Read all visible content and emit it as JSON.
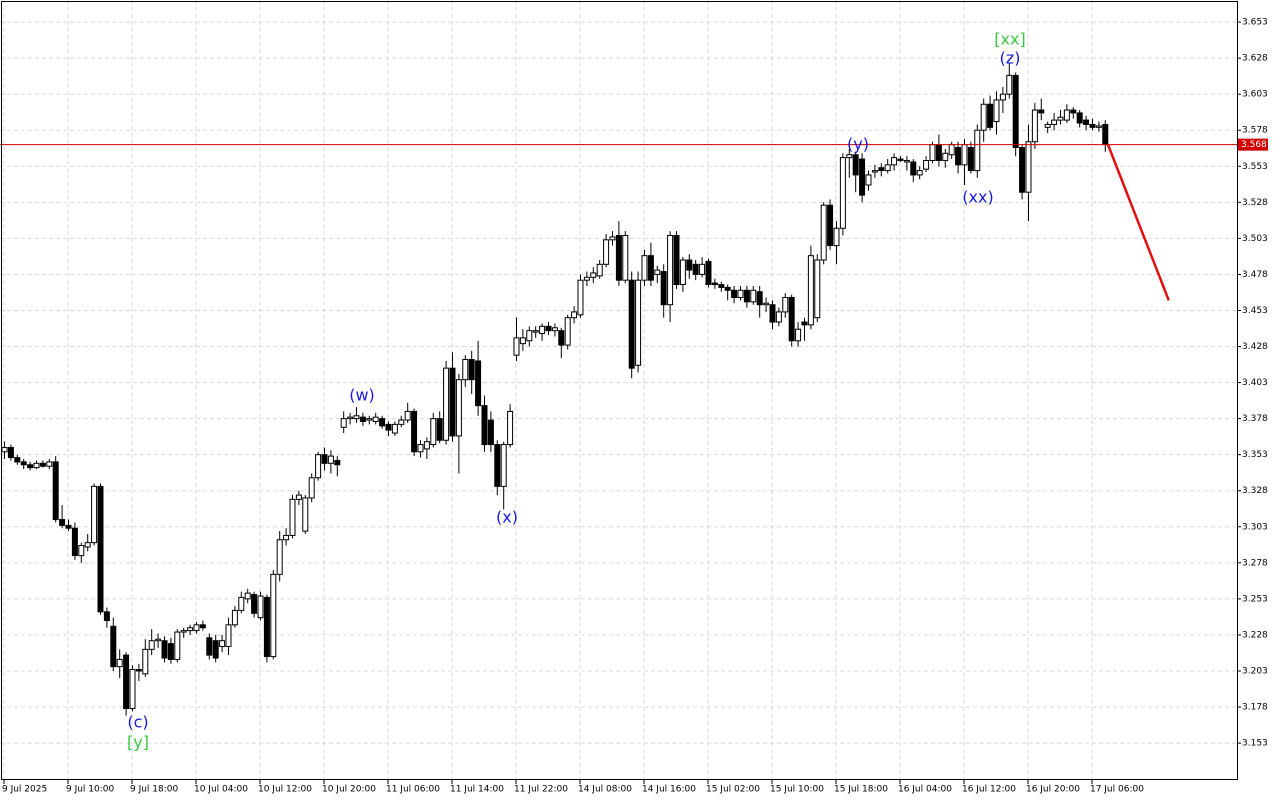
{
  "chart_data": {
    "type": "candlestick",
    "xlim": [
      -0.625,
      192.66
    ],
    "ylim": [
      3.1274,
      3.6683
    ],
    "yticks": [
      3.153,
      3.178,
      3.203,
      3.228,
      3.253,
      3.278,
      3.303,
      3.328,
      3.353,
      3.378,
      3.403,
      3.428,
      3.453,
      3.478,
      3.503,
      3.528,
      3.553,
      3.578,
      3.603,
      3.628,
      3.653
    ],
    "xticks": [
      {
        "value": 0,
        "label": "9 Jul 2025"
      },
      {
        "value": 10,
        "label": "9 Jul 10:00"
      },
      {
        "value": 20,
        "label": "9 Jul 18:00"
      },
      {
        "value": 30,
        "label": "10 Jul 04:00"
      },
      {
        "value": 40,
        "label": "10 Jul 12:00"
      },
      {
        "value": 50,
        "label": "10 Jul 20:00"
      },
      {
        "value": 60,
        "label": "11 Jul 06:00"
      },
      {
        "value": 70,
        "label": "11 Jul 14:00"
      },
      {
        "value": 80,
        "label": "11 Jul 22:00"
      },
      {
        "value": 90,
        "label": "14 Jul 08:00"
      },
      {
        "value": 100,
        "label": "14 Jul 16:00"
      },
      {
        "value": 110,
        "label": "15 Jul 02:00"
      },
      {
        "value": 120,
        "label": "15 Jul 10:00"
      },
      {
        "value": 130,
        "label": "15 Jul 18:00"
      },
      {
        "value": 140,
        "label": "16 Jul 04:00"
      },
      {
        "value": 150,
        "label": "16 Jul 12:00"
      },
      {
        "value": 160,
        "label": "16 Jul 20:00"
      },
      {
        "value": 170,
        "label": "17 Jul 06:00"
      }
    ],
    "grid": true,
    "up_color": "#ffffff",
    "down_color": "#000000",
    "candles": [
      [
        3.355,
        3.362,
        3.35,
        3.358
      ],
      [
        3.358,
        3.36,
        3.349,
        3.351
      ],
      [
        3.351,
        3.353,
        3.346,
        3.348
      ],
      [
        3.348,
        3.35,
        3.343,
        3.346
      ],
      [
        3.346,
        3.348,
        3.342,
        3.344
      ],
      [
        3.344,
        3.349,
        3.343,
        3.347
      ],
      [
        3.347,
        3.349,
        3.344,
        3.345
      ],
      [
        3.345,
        3.35,
        3.343,
        3.348
      ],
      [
        3.348,
        3.352,
        3.306,
        3.308
      ],
      [
        3.308,
        3.318,
        3.302,
        3.304
      ],
      [
        3.304,
        3.308,
        3.3,
        3.302
      ],
      [
        3.302,
        3.306,
        3.28,
        3.283
      ],
      [
        3.283,
        3.292,
        3.278,
        3.29
      ],
      [
        3.289,
        3.298,
        3.286,
        3.292
      ],
      [
        3.292,
        3.333,
        3.29,
        3.331
      ],
      [
        3.331,
        3.333,
        3.242,
        3.244
      ],
      [
        3.244,
        3.247,
        3.233,
        3.238
      ],
      [
        3.234,
        3.24,
        3.203,
        3.206
      ],
      [
        3.206,
        3.218,
        3.198,
        3.211
      ],
      [
        3.214,
        3.216,
        3.172,
        3.177
      ],
      [
        3.177,
        3.207,
        3.175,
        3.204
      ],
      [
        3.204,
        3.208,
        3.196,
        3.203
      ],
      [
        3.201,
        3.225,
        3.199,
        3.218
      ],
      [
        3.218,
        3.232,
        3.214,
        3.224
      ],
      [
        3.224,
        3.229,
        3.219,
        3.225
      ],
      [
        3.224,
        3.227,
        3.209,
        3.212
      ],
      [
        3.222,
        3.226,
        3.208,
        3.211
      ],
      [
        3.211,
        3.232,
        3.209,
        3.23
      ],
      [
        3.23,
        3.233,
        3.226,
        3.231
      ],
      [
        3.231,
        3.235,
        3.228,
        3.233
      ],
      [
        3.231,
        3.237,
        3.229,
        3.235
      ],
      [
        3.235,
        3.238,
        3.231,
        3.233
      ],
      [
        3.226,
        3.229,
        3.211,
        3.214
      ],
      [
        3.224,
        3.228,
        3.209,
        3.212
      ],
      [
        3.22,
        3.228,
        3.216,
        3.224
      ],
      [
        3.22,
        3.24,
        3.214,
        3.235
      ],
      [
        3.235,
        3.248,
        3.233,
        3.245
      ],
      [
        3.245,
        3.258,
        3.243,
        3.254
      ],
      [
        3.253,
        3.26,
        3.25,
        3.257
      ],
      [
        3.256,
        3.258,
        3.24,
        3.243
      ],
      [
        3.24,
        3.258,
        3.238,
        3.255
      ],
      [
        3.254,
        3.256,
        3.209,
        3.213
      ],
      [
        3.213,
        3.273,
        3.211,
        3.27
      ],
      [
        3.27,
        3.3,
        3.265,
        3.294
      ],
      [
        3.294,
        3.302,
        3.29,
        3.297
      ],
      [
        3.297,
        3.325,
        3.295,
        3.322
      ],
      [
        3.322,
        3.328,
        3.318,
        3.325
      ],
      [
        3.3,
        3.325,
        3.298,
        3.323
      ],
      [
        3.323,
        3.34,
        3.32,
        3.337
      ],
      [
        3.337,
        3.355,
        3.335,
        3.353
      ],
      [
        3.353,
        3.358,
        3.342,
        3.347
      ],
      [
        3.347,
        3.356,
        3.34,
        3.352
      ],
      [
        3.349,
        3.352,
        3.338,
        3.346
      ],
      [
        3.372,
        3.383,
        3.368,
        3.378
      ],
      [
        3.378,
        3.382,
        3.374,
        3.379
      ],
      [
        3.378,
        3.386,
        3.375,
        3.38
      ],
      [
        3.379,
        3.382,
        3.373,
        3.376
      ],
      [
        3.377,
        3.38,
        3.374,
        3.378
      ],
      [
        3.376,
        3.382,
        3.374,
        3.379
      ],
      [
        3.378,
        3.38,
        3.371,
        3.373
      ],
      [
        3.374,
        3.376,
        3.366,
        3.37
      ],
      [
        3.368,
        3.376,
        3.366,
        3.374
      ],
      [
        3.374,
        3.38,
        3.372,
        3.377
      ],
      [
        3.377,
        3.389,
        3.375,
        3.383
      ],
      [
        3.383,
        3.385,
        3.352,
        3.355
      ],
      [
        3.355,
        3.363,
        3.351,
        3.36
      ],
      [
        3.357,
        3.365,
        3.35,
        3.362
      ],
      [
        3.36,
        3.382,
        3.358,
        3.378
      ],
      [
        3.378,
        3.383,
        3.361,
        3.363
      ],
      [
        3.363,
        3.418,
        3.36,
        3.413
      ],
      [
        3.413,
        3.424,
        3.362,
        3.366
      ],
      [
        3.366,
        3.409,
        3.34,
        3.405
      ],
      [
        3.405,
        3.422,
        3.4,
        3.419
      ],
      [
        3.419,
        3.425,
        3.395,
        3.405
      ],
      [
        3.418,
        3.432,
        3.38,
        3.387
      ],
      [
        3.387,
        3.394,
        3.355,
        3.36
      ],
      [
        3.377,
        3.383,
        3.355,
        3.36
      ],
      [
        3.36,
        3.363,
        3.325,
        3.331
      ],
      [
        3.331,
        3.362,
        3.315,
        3.36
      ],
      [
        3.36,
        3.388,
        3.358,
        3.383
      ],
      [
        3.422,
        3.448,
        3.418,
        3.434
      ],
      [
        3.43,
        3.44,
        3.425,
        3.434
      ],
      [
        3.432,
        3.442,
        3.428,
        3.439
      ],
      [
        3.438,
        3.442,
        3.434,
        3.439
      ],
      [
        3.437,
        3.444,
        3.432,
        3.442
      ],
      [
        3.442,
        3.445,
        3.436,
        3.439
      ],
      [
        3.439,
        3.444,
        3.435,
        3.441
      ],
      [
        3.439,
        3.441,
        3.42,
        3.429
      ],
      [
        3.429,
        3.45,
        3.426,
        3.448
      ],
      [
        3.448,
        3.456,
        3.444,
        3.452
      ],
      [
        3.45,
        3.478,
        3.448,
        3.474
      ],
      [
        3.474,
        3.48,
        3.47,
        3.476
      ],
      [
        3.476,
        3.483,
        3.472,
        3.479
      ],
      [
        3.477,
        3.488,
        3.475,
        3.485
      ],
      [
        3.485,
        3.506,
        3.483,
        3.502
      ],
      [
        3.502,
        3.508,
        3.498,
        3.504
      ],
      [
        3.505,
        3.515,
        3.47,
        3.474
      ],
      [
        3.474,
        3.508,
        3.472,
        3.505
      ],
      [
        3.474,
        3.48,
        3.406,
        3.413
      ],
      [
        3.415,
        3.48,
        3.41,
        3.474
      ],
      [
        3.474,
        3.495,
        3.47,
        3.491
      ],
      [
        3.491,
        3.5,
        3.47,
        3.474
      ],
      [
        3.478,
        3.484,
        3.472,
        3.481
      ],
      [
        3.48,
        3.485,
        3.448,
        3.457
      ],
      [
        3.457,
        3.508,
        3.445,
        3.505
      ],
      [
        3.505,
        3.508,
        3.468,
        3.471
      ],
      [
        3.471,
        3.49,
        3.466,
        3.488
      ],
      [
        3.488,
        3.492,
        3.475,
        3.481
      ],
      [
        3.485,
        3.488,
        3.474,
        3.478
      ],
      [
        3.478,
        3.49,
        3.476,
        3.485
      ],
      [
        3.487,
        3.489,
        3.469,
        3.471
      ],
      [
        3.472,
        3.475,
        3.468,
        3.471
      ],
      [
        3.471,
        3.473,
        3.466,
        3.469
      ],
      [
        3.469,
        3.471,
        3.46,
        3.467
      ],
      [
        3.467,
        3.47,
        3.458,
        3.462
      ],
      [
        3.462,
        3.47,
        3.46,
        3.467
      ],
      [
        3.467,
        3.47,
        3.455,
        3.459
      ],
      [
        3.459,
        3.47,
        3.457,
        3.467
      ],
      [
        3.466,
        3.47,
        3.448,
        3.457
      ],
      [
        3.457,
        3.462,
        3.452,
        3.458
      ],
      [
        3.457,
        3.46,
        3.44,
        3.445
      ],
      [
        3.445,
        3.455,
        3.442,
        3.452
      ],
      [
        3.452,
        3.465,
        3.448,
        3.462
      ],
      [
        3.462,
        3.464,
        3.428,
        3.432
      ],
      [
        3.432,
        3.445,
        3.428,
        3.44
      ],
      [
        3.445,
        3.448,
        3.432,
        3.443
      ],
      [
        3.443,
        3.498,
        3.44,
        3.491
      ],
      [
        3.448,
        3.492,
        3.445,
        3.488
      ],
      [
        3.488,
        3.528,
        3.485,
        3.526
      ],
      [
        3.526,
        3.53,
        3.495,
        3.498
      ],
      [
        3.498,
        3.515,
        3.485,
        3.51
      ],
      [
        3.51,
        3.562,
        3.505,
        3.559
      ],
      [
        3.559,
        3.565,
        3.545,
        3.561
      ],
      [
        3.561,
        3.563,
        3.535,
        3.547
      ],
      [
        3.558,
        3.562,
        3.528,
        3.533
      ],
      [
        3.54,
        3.55,
        3.536,
        3.547
      ],
      [
        3.549,
        3.554,
        3.545,
        3.55
      ],
      [
        3.552,
        3.555,
        3.546,
        3.55
      ],
      [
        3.55,
        3.558,
        3.548,
        3.554
      ],
      [
        3.554,
        3.562,
        3.55,
        3.559
      ],
      [
        3.558,
        3.56,
        3.556,
        3.557
      ],
      [
        3.556,
        3.56,
        3.55,
        3.557
      ],
      [
        3.556,
        3.558,
        3.542,
        3.547
      ],
      [
        3.547,
        3.553,
        3.544,
        3.55
      ],
      [
        3.551,
        3.56,
        3.549,
        3.557
      ],
      [
        3.557,
        3.57,
        3.555,
        3.568
      ],
      [
        3.568,
        3.575,
        3.553,
        3.557
      ],
      [
        3.557,
        3.565,
        3.552,
        3.562
      ],
      [
        3.561,
        3.57,
        3.558,
        3.568
      ],
      [
        3.566,
        3.57,
        3.548,
        3.554
      ],
      [
        3.554,
        3.572,
        3.54,
        3.568
      ],
      [
        3.566,
        3.57,
        3.548,
        3.55
      ],
      [
        3.55,
        3.582,
        3.545,
        3.578
      ],
      [
        3.578,
        3.6,
        3.57,
        3.596
      ],
      [
        3.596,
        3.602,
        3.578,
        3.58
      ],
      [
        3.584,
        3.605,
        3.575,
        3.599
      ],
      [
        3.599,
        3.608,
        3.59,
        3.603
      ],
      [
        3.603,
        3.625,
        3.6,
        3.616
      ],
      [
        3.616,
        3.618,
        3.56,
        3.566
      ],
      [
        3.566,
        3.568,
        3.53,
        3.535
      ],
      [
        3.535,
        3.582,
        3.515,
        3.57
      ],
      [
        3.57,
        3.597,
        3.565,
        3.592
      ],
      [
        3.592,
        3.6,
        3.585,
        3.59
      ],
      [
        3.58,
        3.584,
        3.576,
        3.582
      ],
      [
        3.582,
        3.59,
        3.578,
        3.585
      ],
      [
        3.585,
        3.592,
        3.582,
        3.587
      ],
      [
        3.585,
        3.596,
        3.583,
        3.592
      ],
      [
        3.592,
        3.594,
        3.586,
        3.59
      ],
      [
        3.59,
        3.592,
        3.58,
        3.583
      ],
      [
        3.585,
        3.588,
        3.578,
        3.582
      ],
      [
        3.582,
        3.586,
        3.578,
        3.58
      ],
      [
        3.58,
        3.584,
        3.577,
        3.581
      ],
      [
        3.582,
        3.585,
        3.563,
        3.568
      ]
    ],
    "current_price": 3.568,
    "current_price_color": "#d00000",
    "forecast": {
      "x": [
        172.5,
        182
      ],
      "y": [
        3.568,
        3.46
      ],
      "color": "#e01010"
    },
    "annotations": [
      {
        "text": "(c)",
        "color": "#1a1ad8"
      },
      {
        "text": "[y]",
        "color": "#3cc83c"
      },
      {
        "text": "(w)",
        "color": "#1a1ad8"
      },
      {
        "text": "(x)",
        "color": "#1a1ad8"
      },
      {
        "text": "(y)",
        "color": "#1a1ad8"
      },
      {
        "text": "(xx)",
        "color": "#1a1ad8"
      },
      {
        "text": "(z)",
        "color": "#1a1ad8"
      },
      {
        "text": "[xx]",
        "color": "#3cc83c"
      }
    ]
  }
}
